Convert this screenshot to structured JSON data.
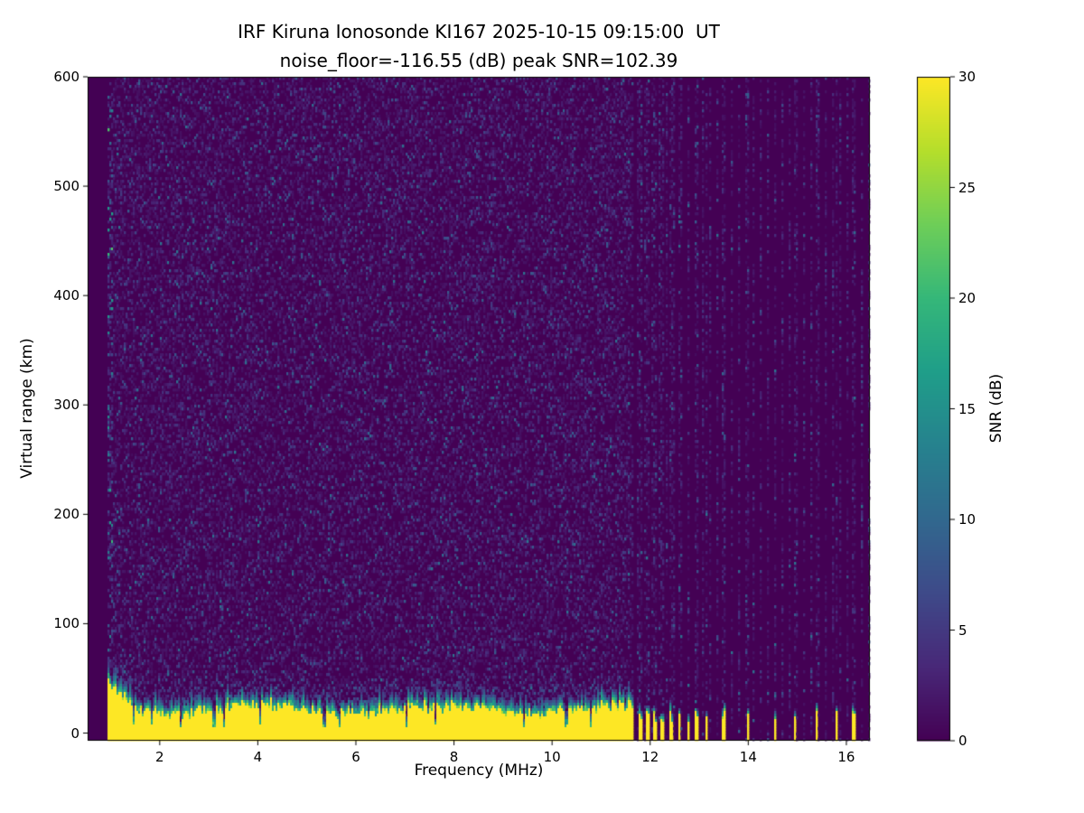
{
  "chart_data": {
    "type": "heatmap",
    "title": "IRF Kiruna Ionosonde KI167 2025-10-15 09:15:00  UT",
    "subtitle": "noise_floor=-116.55 (dB) peak SNR=102.39",
    "station": "IRF Kiruna Ionosonde KI167",
    "timestamp_ut": "2025-10-15 09:15:00",
    "noise_floor_db": -116.55,
    "peak_snr_db": 102.39,
    "xlabel": "Frequency (MHz)",
    "ylabel": "Virtual range (km)",
    "xlim": [
      0.53,
      16.48
    ],
    "ylim": [
      -7,
      600
    ],
    "xticks": [
      2,
      4,
      6,
      8,
      10,
      12,
      14,
      16
    ],
    "yticks": [
      0,
      100,
      200,
      300,
      400,
      500,
      600
    ],
    "grid": false,
    "colorbar": {
      "label": "SNR (dB)",
      "min": 0,
      "max": 30,
      "ticks": [
        0,
        5,
        10,
        15,
        20,
        25,
        30
      ],
      "colormap": "viridis"
    },
    "colors": {
      "background": "#ffffff",
      "lowest": "#440154",
      "highest": "#fde725"
    },
    "features": {
      "background_noise_db_range": [
        0,
        8
      ],
      "continuous_sweep_mhz": [
        0.95,
        11.65
      ],
      "ground_echo_snr_db": 30,
      "ground_echo_top_km_typical": 28,
      "ground_echo_top_km_at_1mhz": 48,
      "sparse_echo_frequencies_mhz": [
        11.8,
        11.95,
        12.1,
        12.25,
        12.42,
        12.6,
        12.78,
        12.95,
        13.15,
        13.5,
        14.0,
        14.55,
        14.95,
        15.4,
        15.8,
        16.15
      ]
    }
  }
}
